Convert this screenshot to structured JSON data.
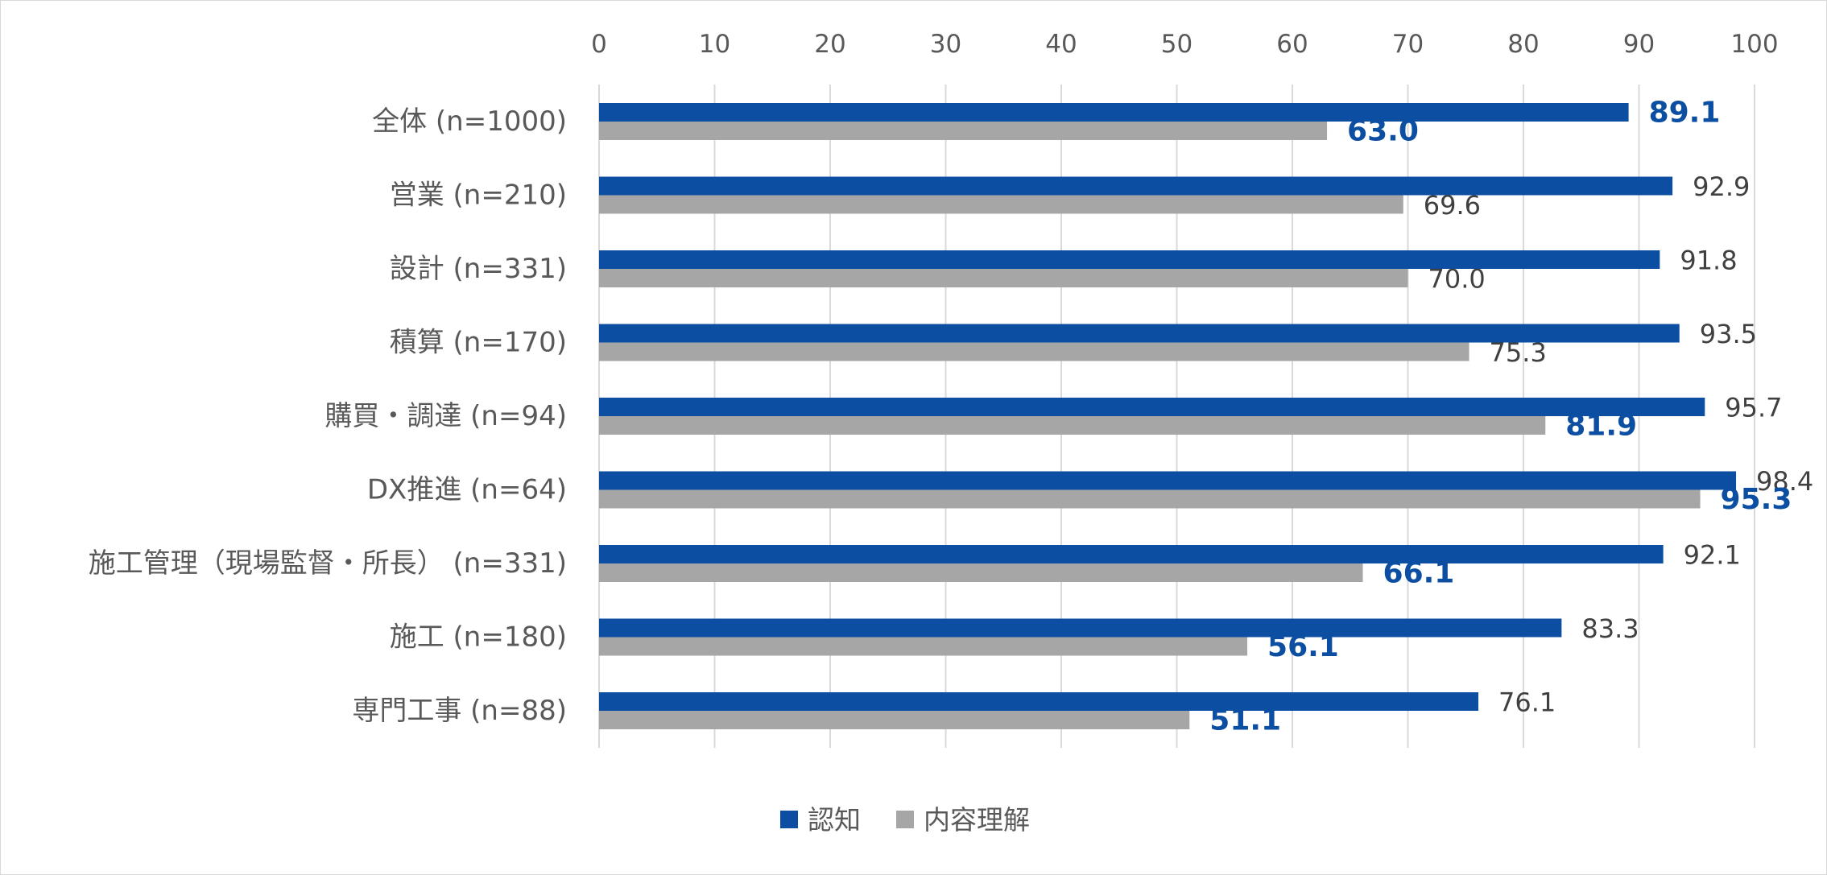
{
  "chart_data": {
    "type": "bar",
    "orientation": "horizontal",
    "categories": [
      "全体 (n=1000)",
      "営業 (n=210)",
      "設計 (n=331)",
      "積算 (n=170)",
      "購買・調達 (n=94)",
      "DX推進 (n=64)",
      "施工管理（現場監督・所長） (n=331)",
      "施工 (n=180)",
      "専門工事 (n=88)"
    ],
    "series": [
      {
        "name": "認知",
        "color": "#0b4ea2",
        "values": [
          89.1,
          92.9,
          91.8,
          93.5,
          95.7,
          98.4,
          92.1,
          83.3,
          76.1
        ],
        "labels": [
          "89.1",
          "92.9",
          "91.8",
          "93.5",
          "95.7",
          "98.4",
          "92.1",
          "83.3",
          "76.1"
        ],
        "highlighted": [
          true,
          false,
          false,
          false,
          false,
          false,
          false,
          false,
          false
        ]
      },
      {
        "name": "内容理解",
        "color": "#a6a6a6",
        "values": [
          63.0,
          69.6,
          70.0,
          75.3,
          81.9,
          95.3,
          66.1,
          56.1,
          51.1
        ],
        "labels": [
          "63.0",
          "69.6",
          "70.0",
          "75.3",
          "81.9",
          "95.3",
          "66.1",
          "56.1",
          "51.1"
        ],
        "highlighted": [
          true,
          false,
          false,
          false,
          true,
          true,
          true,
          true,
          true
        ]
      }
    ],
    "x_ticks": [
      "0",
      "10",
      "20",
      "30",
      "40",
      "50",
      "60",
      "70",
      "80",
      "90",
      "100"
    ],
    "xlim": [
      0,
      100
    ],
    "x_axis_position": "top",
    "grid": true,
    "legend_position": "bottom",
    "highlight_color": "#0b4ea2",
    "grid_color": "#d9d9d9"
  }
}
